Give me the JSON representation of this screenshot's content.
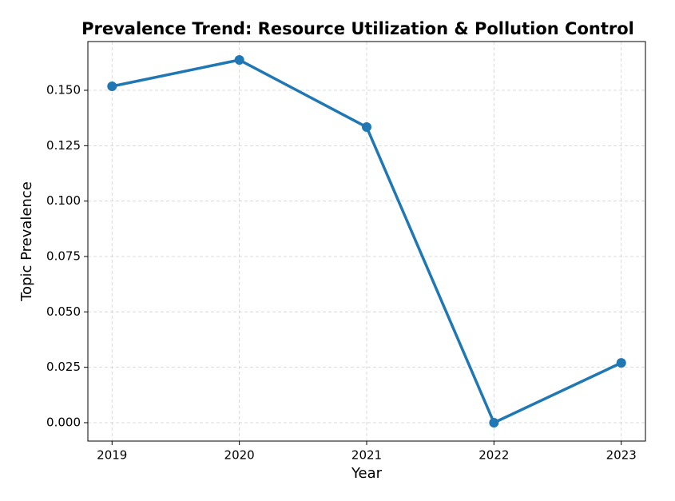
{
  "chart_data": {
    "type": "line",
    "title": "Prevalence Trend: Resource Utilization & Pollution Control",
    "xlabel": "Year",
    "ylabel": "Topic Prevalence",
    "x": [
      2019,
      2020,
      2021,
      2022,
      2023
    ],
    "series": [
      {
        "name": "Topic Prevalence",
        "color": "#1f77b4",
        "values": [
          0.1518,
          0.1637,
          0.1334,
          0.0,
          0.027
        ]
      }
    ],
    "xlim": [
      2018.81,
      2023.19
    ],
    "xticks": [
      2019,
      2020,
      2021,
      2022,
      2023
    ],
    "ylim": [
      -0.0083,
      0.172
    ],
    "yticks": [
      {
        "value": 0,
        "label": "0.000"
      },
      0.025,
      {
        "value": 0.05,
        "label": "0.050"
      },
      0.075,
      {
        "value": 0.1,
        "label": "0.100"
      },
      0.125,
      {
        "value": 0.15,
        "label": "0.150"
      }
    ],
    "grid": true
  }
}
